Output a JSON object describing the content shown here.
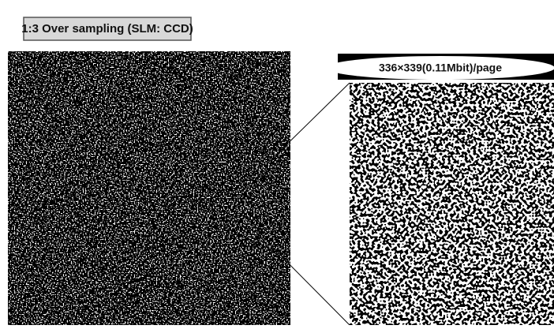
{
  "left_label": "1:3 Over sampling (SLM: CCD)",
  "right_label": "336×339(0.11Mbit)/page"
}
